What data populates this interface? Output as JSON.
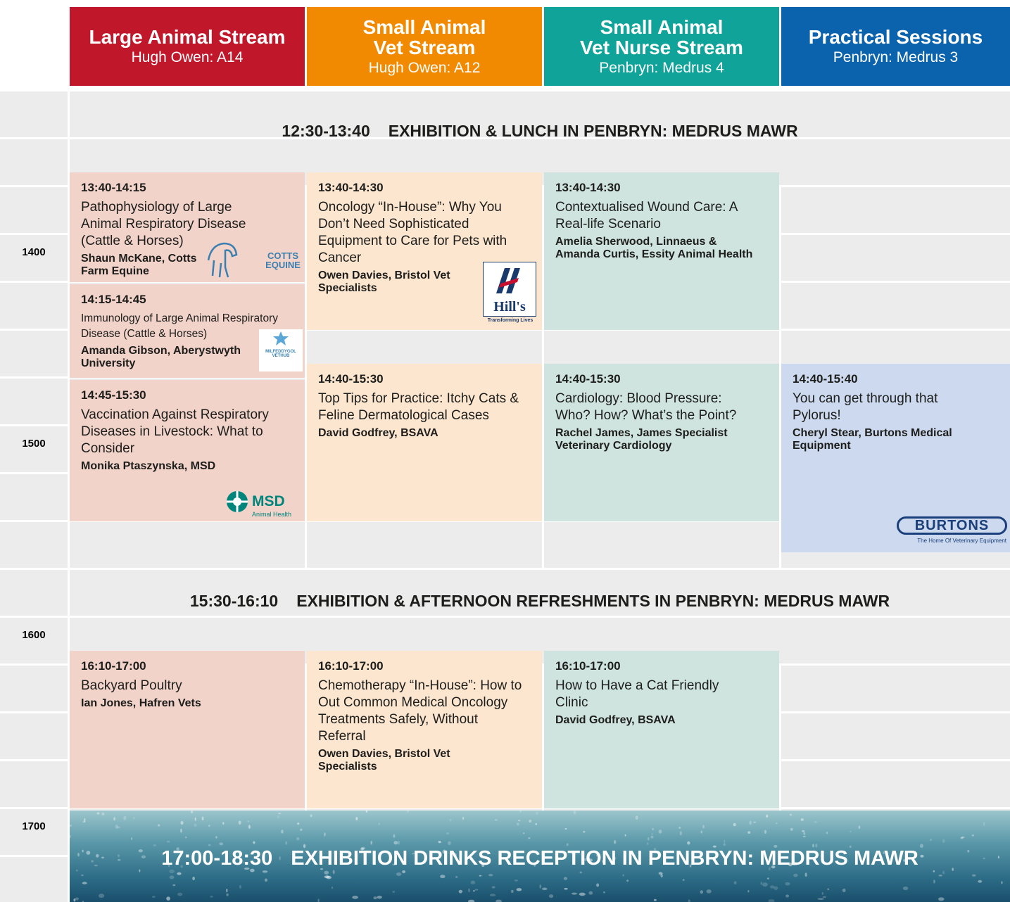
{
  "streams": [
    {
      "name": "Large Animal Stream",
      "room": "Hugh Owen: A14"
    },
    {
      "name": "Small Animal\nVet Stream",
      "room": "Hugh Owen: A12"
    },
    {
      "name": "Small Animal\nVet Nurse Stream",
      "room": "Penbryn: Medrus 4"
    },
    {
      "name": "Practical Sessions",
      "room": "Penbryn: Medrus 3"
    }
  ],
  "hours": [
    "1400",
    "1500",
    "1600",
    "1700"
  ],
  "breaks": [
    {
      "time": "12:30-13:40",
      "title": "EXHIBITION & LUNCH IN PENBRYN: MEDRUS MAWR"
    },
    {
      "time": "15:30-16:10",
      "title": "EXHIBITION & AFTERNOON REFRESHMENTS IN PENBRYN: MEDRUS MAWR"
    },
    {
      "time": "17:00-18:30",
      "title": "EXHIBITION DRINKS RECEPTION IN PENBRYN: MEDRUS MAWR"
    }
  ],
  "sessions": [
    {
      "time": "13:40-14:15",
      "title": "Pathophysiology of Large Animal Respiratory Disease (Cattle & Horses)",
      "speaker": "Shaun McKane, Cotts Farm Equine"
    },
    {
      "time": "14:15-14:45",
      "title": "Immunology of Large Animal Respiratory Disease (Cattle & Horses)",
      "speaker": "Amanda Gibson, Aberystwyth University"
    },
    {
      "time": "14:45-15:30",
      "title": "Vaccination Against Respiratory Diseases in Livestock: What to Consider",
      "speaker": "Monika Ptaszynska, MSD"
    },
    {
      "time": "13:40-14:30",
      "title": "Oncology “In-House”: Why You Don’t Need Sophisticated Equipment to Care for Pets with Cancer",
      "speaker": "Owen Davies, Bristol Vet Specialists"
    },
    {
      "time": "14:40-15:30",
      "title": "Top Tips for Practice: Itchy Cats & Feline Dermatological Cases",
      "speaker": "David Godfrey, BSAVA"
    },
    {
      "time": "13:40-14:30",
      "title": "Contextualised Wound Care: A Real-life Scenario",
      "speaker": "Amelia Sherwood,  Linnaeus & Amanda Curtis, Essity Animal Health"
    },
    {
      "time": "14:40-15:30",
      "title": "Cardiology: Blood Pressure: Who? How? What’s the Point?",
      "speaker": "Rachel James, James Specialist Veterinary Cardiology"
    },
    {
      "time": "14:40-15:40",
      "title": "You can get through that Pylorus!",
      "speaker": "Cheryl Stear, Burtons Medical Equipment"
    },
    {
      "time": "16:10-17:00",
      "title": "Backyard Poultry",
      "speaker": "Ian Jones, Hafren Vets"
    },
    {
      "time": "16:10-17:00",
      "title": "Chemotherapy “In-House”: How to Out Common Medical Oncology Treatments Safely, Without Referral",
      "speaker": "Owen Davies, Bristol Vet Specialists"
    },
    {
      "time": "16:10-17:00",
      "title": "How to Have a Cat Friendly Clinic",
      "speaker": "David Godfrey, BSAVA"
    }
  ],
  "logos": [
    "COTTS EQUINE",
    "Hill's",
    "Transforming Lives",
    "MILFEDDYGOL",
    "VETHUB",
    "MSD",
    "Animal Health",
    "BURTONS",
    "The Home Of Veterinary Equipment"
  ]
}
